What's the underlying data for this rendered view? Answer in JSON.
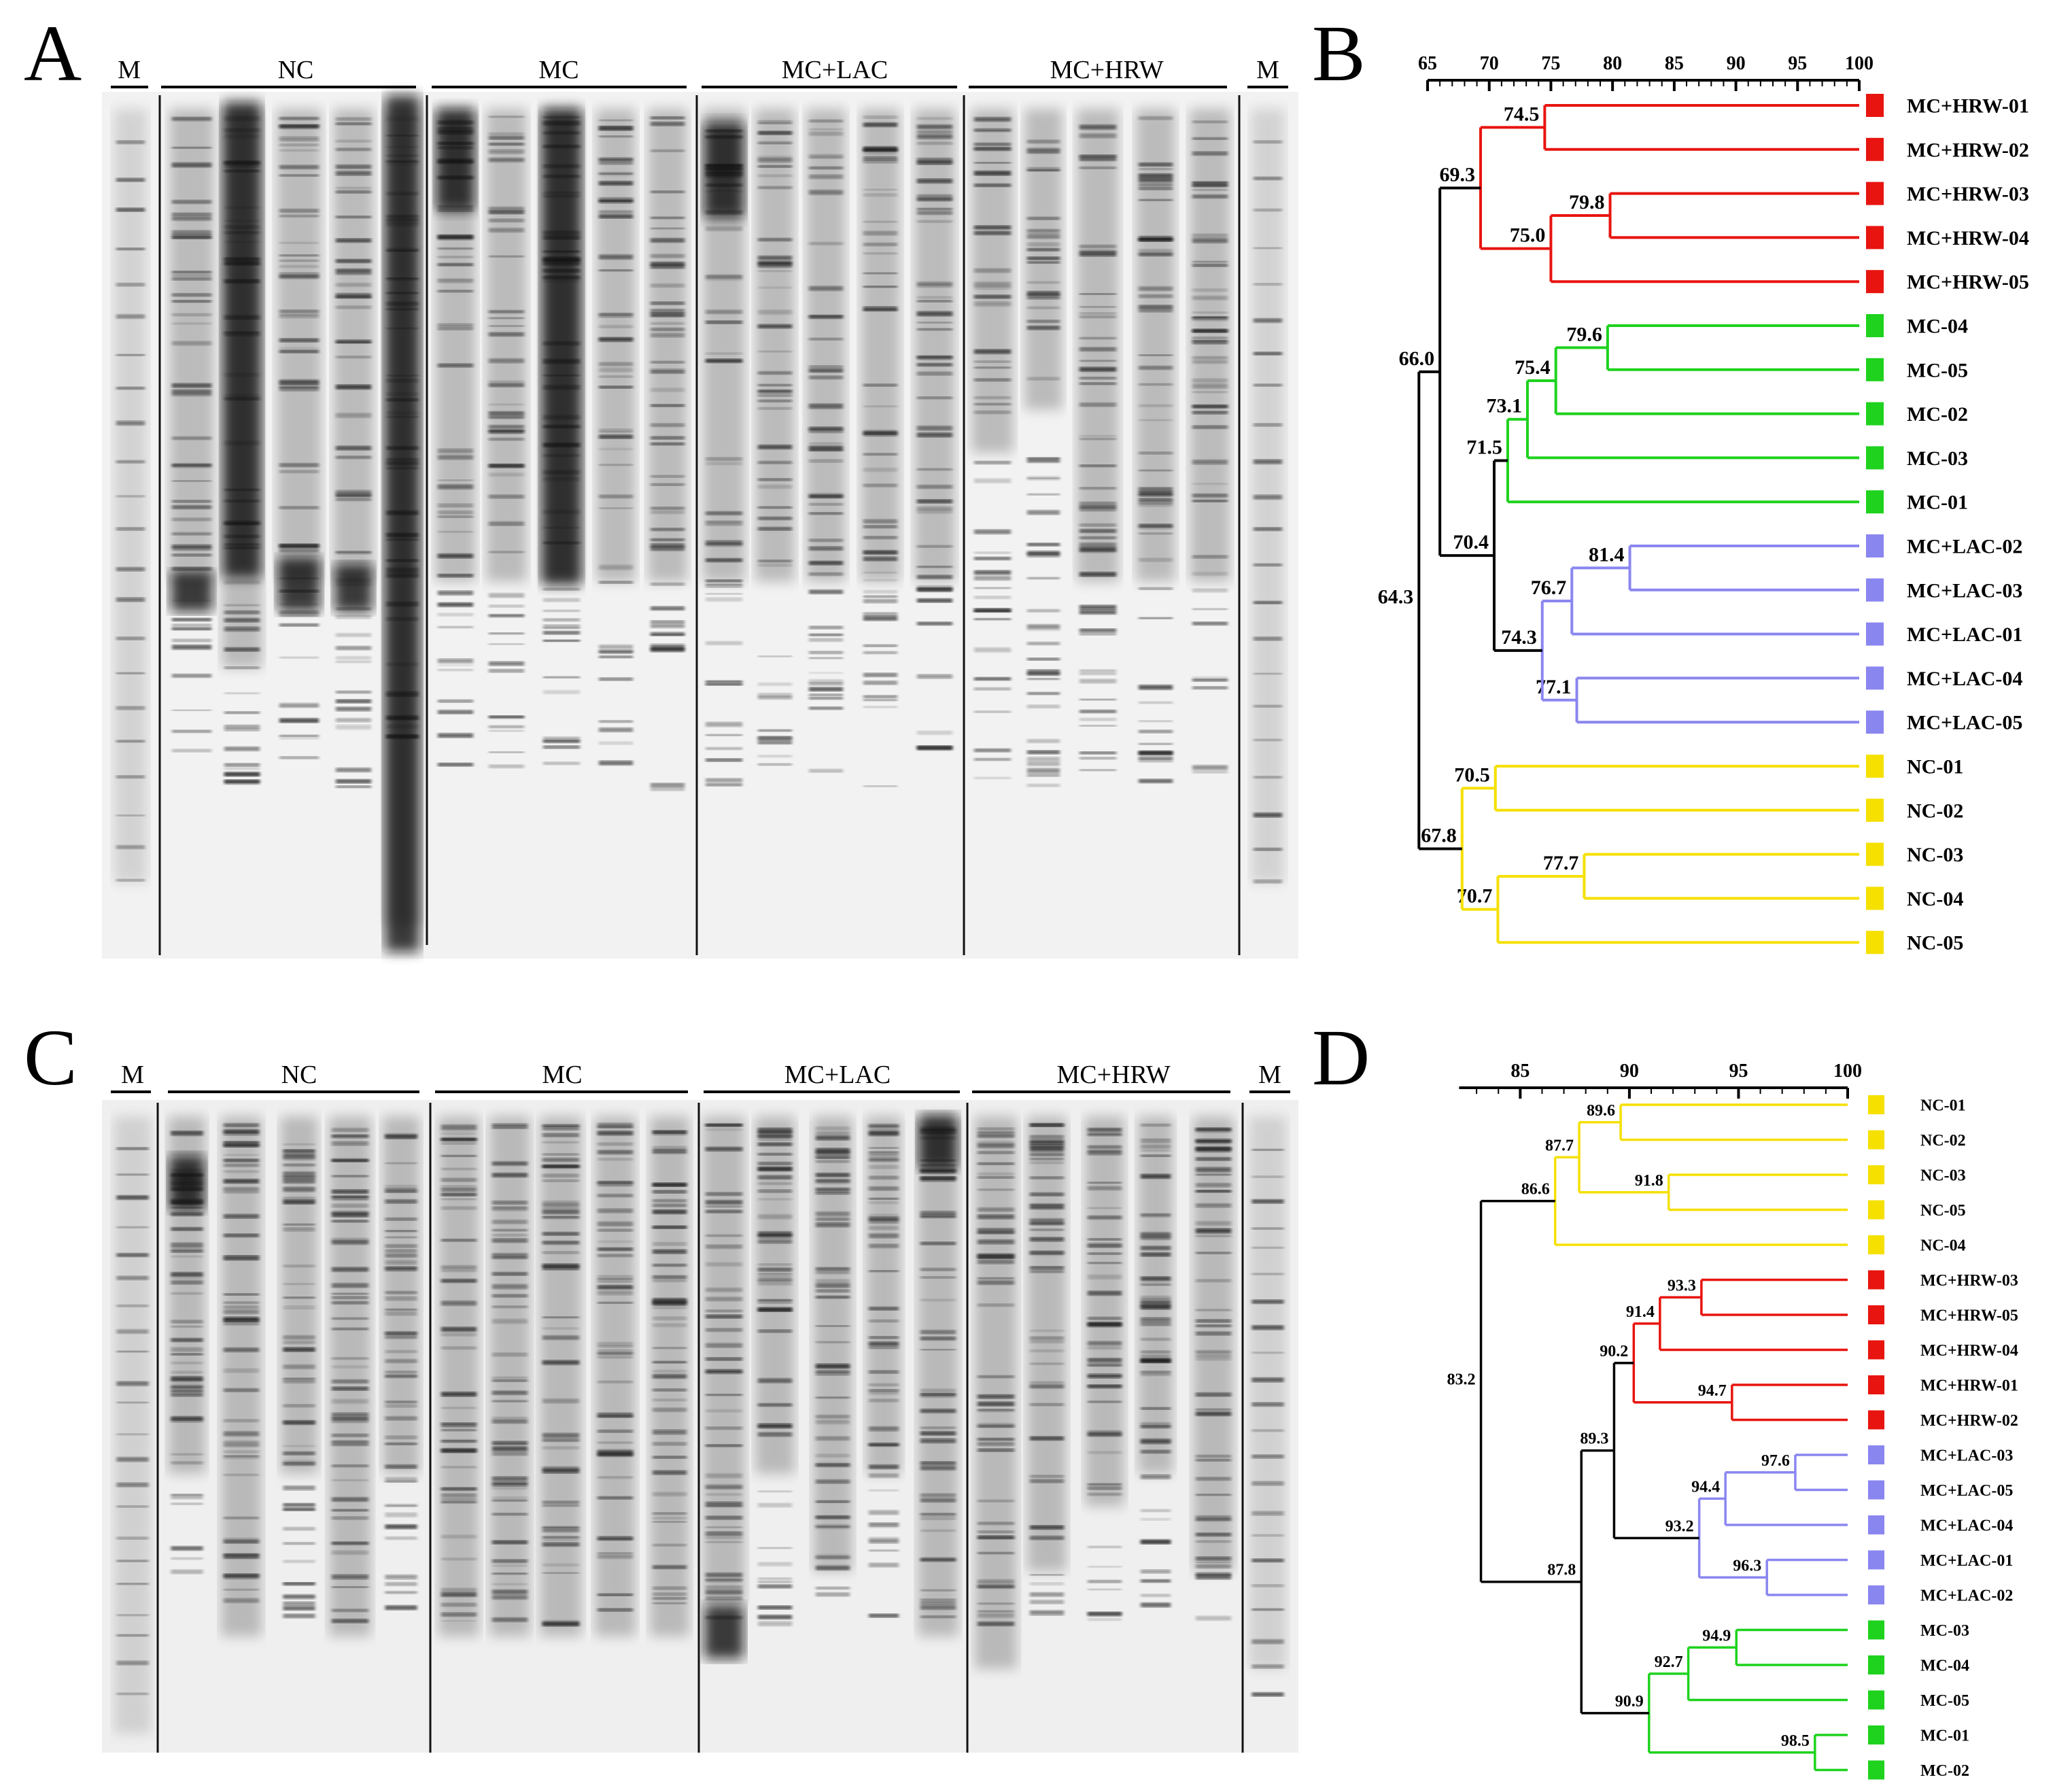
{
  "panels": {
    "A": {
      "letter": "A",
      "marker": "M",
      "groups": [
        "NC",
        "MC",
        "MC+LAC",
        "MC+HRW"
      ]
    },
    "B": {
      "letter": "B",
      "axis": {
        "min": 65,
        "max": 100,
        "ticks": [
          "65",
          "70",
          "75",
          "80",
          "85",
          "90",
          "95",
          "100"
        ]
      },
      "leaves": [
        {
          "label": "MC+HRW-01",
          "color": "#e8140f"
        },
        {
          "label": "MC+HRW-02",
          "color": "#e8140f"
        },
        {
          "label": "MC+HRW-03",
          "color": "#e8140f"
        },
        {
          "label": "MC+HRW-04",
          "color": "#e8140f"
        },
        {
          "label": "MC+HRW-05",
          "color": "#e8140f"
        },
        {
          "label": "MC-04",
          "color": "#1ed21e"
        },
        {
          "label": "MC-05",
          "color": "#1ed21e"
        },
        {
          "label": "MC-02",
          "color": "#1ed21e"
        },
        {
          "label": "MC-03",
          "color": "#1ed21e"
        },
        {
          "label": "MC-01",
          "color": "#1ed21e"
        },
        {
          "label": "MC+LAC-02",
          "color": "#8a86f0"
        },
        {
          "label": "MC+LAC-03",
          "color": "#8a86f0"
        },
        {
          "label": "MC+LAC-01",
          "color": "#8a86f0"
        },
        {
          "label": "MC+LAC-04",
          "color": "#8a86f0"
        },
        {
          "label": "MC+LAC-05",
          "color": "#8a86f0"
        },
        {
          "label": "NC-01",
          "color": "#f5e000"
        },
        {
          "label": "NC-02",
          "color": "#f5e000"
        },
        {
          "label": "NC-03",
          "color": "#f5e000"
        },
        {
          "label": "NC-04",
          "color": "#f5e000"
        },
        {
          "label": "NC-05",
          "color": "#f5e000"
        }
      ],
      "nodes": [
        {
          "id": "b1",
          "value": 74.5,
          "children": [
            "L0",
            "L1"
          ],
          "color": "#e8140f"
        },
        {
          "id": "b2",
          "value": 79.8,
          "children": [
            "L2",
            "L3"
          ],
          "color": "#e8140f"
        },
        {
          "id": "b3",
          "value": 75.0,
          "children": [
            "b2",
            "L4"
          ],
          "color": "#e8140f"
        },
        {
          "id": "b4",
          "value": 69.3,
          "children": [
            "b1",
            "b3"
          ],
          "color": "#e8140f"
        },
        {
          "id": "b5",
          "value": 79.6,
          "children": [
            "L5",
            "L6"
          ],
          "color": "#1ed21e"
        },
        {
          "id": "b6",
          "value": 75.4,
          "children": [
            "b5",
            "L7"
          ],
          "color": "#1ed21e"
        },
        {
          "id": "b7",
          "value": 73.1,
          "children": [
            "b6",
            "L8"
          ],
          "color": "#1ed21e"
        },
        {
          "id": "b8",
          "value": 71.5,
          "children": [
            "b7",
            "L9"
          ],
          "color": "#1ed21e"
        },
        {
          "id": "b9",
          "value": 81.4,
          "children": [
            "L10",
            "L11"
          ],
          "color": "#8a86f0"
        },
        {
          "id": "b10",
          "value": 76.7,
          "children": [
            "b9",
            "L12"
          ],
          "color": "#8a86f0"
        },
        {
          "id": "b11",
          "value": 77.1,
          "children": [
            "L13",
            "L14"
          ],
          "color": "#8a86f0"
        },
        {
          "id": "b12",
          "value": 74.3,
          "children": [
            "b10",
            "b11"
          ],
          "color": "#8a86f0"
        },
        {
          "id": "b13",
          "value": 70.4,
          "children": [
            "b8",
            "b12"
          ],
          "color": "#000000"
        },
        {
          "id": "b14",
          "value": 66.0,
          "children": [
            "b4",
            "b13"
          ],
          "color": "#000000"
        },
        {
          "id": "b15",
          "value": 70.5,
          "children": [
            "L15",
            "L16"
          ],
          "color": "#f5e000"
        },
        {
          "id": "b16",
          "value": 77.7,
          "children": [
            "L17",
            "L18"
          ],
          "color": "#f5e000"
        },
        {
          "id": "b17",
          "value": 70.7,
          "children": [
            "b16",
            "L19"
          ],
          "color": "#f5e000"
        },
        {
          "id": "b18",
          "value": 67.8,
          "children": [
            "b15",
            "b17"
          ],
          "color": "#f5e000"
        },
        {
          "id": "b19",
          "value": 64.3,
          "children": [
            "b14",
            "b18"
          ],
          "color": "#000000"
        }
      ]
    },
    "C": {
      "letter": "C",
      "marker": "M",
      "groups": [
        "NC",
        "MC",
        "MC+LAC",
        "MC+HRW"
      ]
    },
    "D": {
      "letter": "D",
      "axis": {
        "min": 82,
        "max": 100,
        "ticks": [
          "85",
          "90",
          "95",
          "100"
        ]
      },
      "leaves": [
        {
          "label": "NC-01",
          "color": "#f5e000"
        },
        {
          "label": "NC-02",
          "color": "#f5e000"
        },
        {
          "label": "NC-03",
          "color": "#f5e000"
        },
        {
          "label": "NC-05",
          "color": "#f5e000"
        },
        {
          "label": "NC-04",
          "color": "#f5e000"
        },
        {
          "label": "MC+HRW-03",
          "color": "#e8140f"
        },
        {
          "label": "MC+HRW-05",
          "color": "#e8140f"
        },
        {
          "label": "MC+HRW-04",
          "color": "#e8140f"
        },
        {
          "label": "MC+HRW-01",
          "color": "#e8140f"
        },
        {
          "label": "MC+HRW-02",
          "color": "#e8140f"
        },
        {
          "label": "MC+LAC-03",
          "color": "#8a86f0"
        },
        {
          "label": "MC+LAC-05",
          "color": "#8a86f0"
        },
        {
          "label": "MC+LAC-04",
          "color": "#8a86f0"
        },
        {
          "label": "MC+LAC-01",
          "color": "#8a86f0"
        },
        {
          "label": "MC+LAC-02",
          "color": "#8a86f0"
        },
        {
          "label": "MC-03",
          "color": "#1ed21e"
        },
        {
          "label": "MC-04",
          "color": "#1ed21e"
        },
        {
          "label": "MC-05",
          "color": "#1ed21e"
        },
        {
          "label": "MC-01",
          "color": "#1ed21e"
        },
        {
          "label": "MC-02",
          "color": "#1ed21e"
        }
      ],
      "nodes": [
        {
          "id": "d1",
          "value": 89.6,
          "children": [
            "L0",
            "L1"
          ],
          "color": "#f5e000"
        },
        {
          "id": "d2",
          "value": 91.8,
          "children": [
            "L2",
            "L3"
          ],
          "color": "#f5e000"
        },
        {
          "id": "d3",
          "value": 87.7,
          "children": [
            "d1",
            "d2"
          ],
          "color": "#f5e000"
        },
        {
          "id": "d4",
          "value": 86.6,
          "children": [
            "d3",
            "L4"
          ],
          "color": "#f5e000"
        },
        {
          "id": "d5",
          "value": 93.3,
          "children": [
            "L5",
            "L6"
          ],
          "color": "#e8140f"
        },
        {
          "id": "d6",
          "value": 91.4,
          "children": [
            "d5",
            "L7"
          ],
          "color": "#e8140f"
        },
        {
          "id": "d7",
          "value": 94.7,
          "children": [
            "L8",
            "L9"
          ],
          "color": "#e8140f"
        },
        {
          "id": "d8",
          "value": 90.2,
          "children": [
            "d6",
            "d7"
          ],
          "color": "#e8140f"
        },
        {
          "id": "d9",
          "value": 97.6,
          "children": [
            "L10",
            "L11"
          ],
          "color": "#8a86f0"
        },
        {
          "id": "d10",
          "value": 94.4,
          "children": [
            "d9",
            "L12"
          ],
          "color": "#8a86f0"
        },
        {
          "id": "d11",
          "value": 96.3,
          "children": [
            "L13",
            "L14"
          ],
          "color": "#8a86f0"
        },
        {
          "id": "d12",
          "value": 93.2,
          "children": [
            "d10",
            "d11"
          ],
          "color": "#8a86f0"
        },
        {
          "id": "d13",
          "value": 89.3,
          "children": [
            "d8",
            "d12"
          ],
          "color": "#000000"
        },
        {
          "id": "d14",
          "value": 94.9,
          "children": [
            "L15",
            "L16"
          ],
          "color": "#1ed21e"
        },
        {
          "id": "d15",
          "value": 92.7,
          "children": [
            "d14",
            "L17"
          ],
          "color": "#1ed21e"
        },
        {
          "id": "d16",
          "value": 98.5,
          "children": [
            "L18",
            "L19"
          ],
          "color": "#1ed21e"
        },
        {
          "id": "d17",
          "value": 90.9,
          "children": [
            "d15",
            "d16"
          ],
          "color": "#1ed21e"
        },
        {
          "id": "d18",
          "value": 87.8,
          "children": [
            "d13",
            "d17"
          ],
          "color": "#000000"
        },
        {
          "id": "d19",
          "value": 83.2,
          "children": [
            "d4",
            "d18"
          ],
          "color": "#000000"
        }
      ]
    }
  }
}
